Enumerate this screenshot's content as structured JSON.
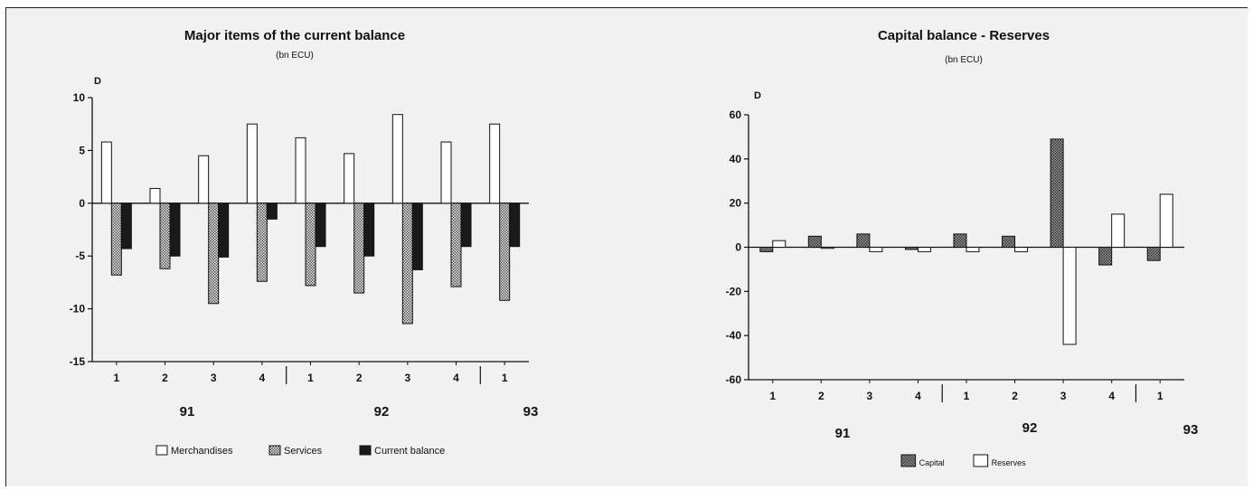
{
  "chart_data": [
    {
      "type": "bar",
      "title": "Major items of the current balance",
      "subtitle": "(bn ECU)",
      "ylabel": "D",
      "ylim": [
        -15,
        10
      ],
      "yticks": [
        "10",
        "5",
        "0",
        "-5",
        "-10",
        "-15"
      ],
      "categories": [
        "1",
        "2",
        "3",
        "4",
        "1",
        "2",
        "3",
        "4",
        "1"
      ],
      "years": [
        "91",
        "92",
        "93"
      ],
      "series": [
        {
          "name": "Merchandises",
          "color": "#ffffff",
          "values": [
            5.8,
            1.4,
            4.5,
            7.5,
            6.2,
            4.7,
            8.4,
            5.8,
            7.5
          ]
        },
        {
          "name": "Services",
          "color": "#b8b8b8",
          "values": [
            -6.8,
            -6.2,
            -9.5,
            -7.4,
            -7.8,
            -8.5,
            -11.4,
            -7.9,
            -9.2
          ]
        },
        {
          "name": "Current balance",
          "color": "#1a1a1a",
          "values": [
            -4.3,
            -5.0,
            -5.1,
            -1.5,
            -4.1,
            -5.0,
            -6.3,
            -4.1,
            -4.1
          ]
        }
      ],
      "grid": false,
      "legend_position": "bottom"
    },
    {
      "type": "bar",
      "title": "Capital balance - Reserves",
      "subtitle": "(bn ECU)",
      "ylabel": "D",
      "ylim": [
        -60,
        60
      ],
      "yticks": [
        "60",
        "40",
        "20",
        "0",
        "-20",
        "-40",
        "-60"
      ],
      "categories": [
        "1",
        "2",
        "3",
        "4",
        "1",
        "2",
        "3",
        "4",
        "1"
      ],
      "years": [
        "91",
        "92",
        "93"
      ],
      "series": [
        {
          "name": "Capital",
          "color": "#8c8c8c",
          "values": [
            -2,
            5,
            6,
            -1,
            6,
            5,
            49,
            -8,
            -6
          ]
        },
        {
          "name": "Reserves",
          "color": "#ffffff",
          "values": [
            3,
            -0.5,
            -2,
            -2,
            -2,
            -2,
            -44,
            15,
            24
          ]
        }
      ],
      "grid": false,
      "legend_position": "bottom"
    }
  ]
}
